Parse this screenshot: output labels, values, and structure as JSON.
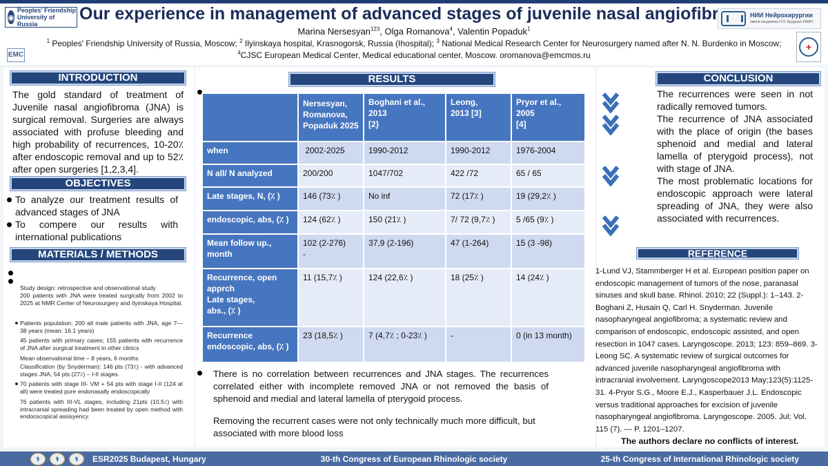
{
  "header": {
    "title": "Our experience in management of advanced stages of juvenile nasal angiofibromas",
    "authors": [
      {
        "name": "Marina Nersesyan",
        "sup": "123"
      },
      {
        "name": "Olga Romanova",
        "sup": "4"
      },
      {
        "name": "Valentin Popaduk",
        "sup": "1"
      }
    ],
    "affiliations": [
      {
        "sup": "1",
        "text": "Peoples' Friendship University of Russia, Moscow;"
      },
      {
        "sup": "2",
        "text": "Ilyinskaya hospital, Krasnogorsk, Russia (Ihospital);"
      },
      {
        "sup": "3",
        "text": "National Medical Research Center for Neurosurgery named after N. N. Burdenko in Moscow;"
      },
      {
        "sup": "4",
        "text": "CJSC European Medical Center, Medical educational center, Moscow. oromanova@emcmos.ru"
      }
    ],
    "logo_left": "Peoples' Friendship University of Russia",
    "logo_emc": "EMC",
    "logo_right": "НИИ Нейрохирургии",
    "logo_right_sub": "имени академика Н.Н. Бурденко РАМН"
  },
  "introduction": {
    "heading": "INTRODUCTION",
    "text": "The gold standard of treatment of Juvenile nasal angiofibroma (JNA) is surgical removal. Surgeries are always associated with profuse bleeding and high probability of recurrences, 10-20٪ after endoscopic removal and up to 52٪ after open surgeries [1,2,3,4]."
  },
  "objectives": {
    "heading": "OBJECTIVES",
    "items": [
      "To analyze our treatment results of advanced stages of JNA",
      "To compere our results with international publications"
    ]
  },
  "methods": {
    "heading": "MATERIALS / METHODS",
    "lines": [
      "Study design: retrospective and observational study",
      "200 patients with JNA were treated surgically from 2002 to 2025 at NMR Center of Neurosurgery and Ilyinskaya Hospital.",
      "Patients population: 200 all male patients with JNA, age 7—38 years (mean: 16.1 years)",
      "45 patients with primary cases; 155 patients with recurrence of JNA after surgical treatment in other clinics",
      "Mean observational time – 8 years, 6 months",
      "Classification (by Snyderman): 146 pts (73٪) - with advanced stages JNA, 54 pts (27٪) – I-II stages.",
      "70 patients with stage III- VM + 54 pts with stage I-II (124 at all) were treated pure endonasally endoscopically",
      "76 patients with III-VL stages, including 21pts (10,5٪) with intracranial spreading had been treated by open method with endocscopical assisyency."
    ]
  },
  "results": {
    "heading": "RESULTS",
    "table": {
      "columns": [
        "",
        "Nersesyan, Romanova, Popaduk 2025",
        "Boghani et al., 2013\n [2}",
        "Leong,\n2013 [3]",
        "Pryor et al., 2005\n [4]"
      ],
      "rows": [
        {
          "label": "when",
          "cells": [
            " 2002-2025",
            "1990-2012",
            "1990-2012",
            "1976-2004"
          ]
        },
        {
          "label": "N all/ N analyzed",
          "cells": [
            "200/200",
            "1047/702",
            "422 /72",
            "65 / 65"
          ]
        },
        {
          "label": "Late stages, N, (٪ )",
          "cells": [
            "146 (73٪ )",
            "No inf",
            "72  (17٪ )",
            "19 (29,2٪ )"
          ]
        },
        {
          "label": "endoscopic, abs, (٪ )",
          "cells": [
            "124  (62٪ )",
            "150 (21٪ )",
            "7/ 72 (9,7٪ )",
            "5 /65 (9٪ )"
          ]
        },
        {
          "label": "Mean follow up., month",
          "cells": [
            "102 (2-276)\n-",
            "37,9 (2-196)",
            "47  (1-264)",
            "15 (3 -98)"
          ]
        },
        {
          "label": "Recurrence, open apprch\nLate stages,\nabs., (٪ )",
          "cells": [
            "11 (15,7٪ )",
            "124 (22,6٪ )",
            "18 (25٪ )",
            "14 (24٪ )"
          ]
        },
        {
          "label": "Recurrence endoscopic, abs, (٪ )",
          "cells": [
            "23 (18,5٪ )",
            "7 (4,7٪ ; 0-23٪ )",
            "-",
            "0 (in  13 month)"
          ]
        }
      ]
    },
    "finding": "There is no correlation between recurrences and JNA stages. The recurrences correlated either with incomplete removed JNA or not removed the basis of sphenoid and medial and lateral lamella of pterygoid process.",
    "finding2": "Removing the recurrent cases were not only technically much more difficult, but associated with more blood loss"
  },
  "conclusion": {
    "heading": "CONCLUSION",
    "paragraphs": [
      "The recurrences were seen in not radically removed tumors.",
      "The recurrence of JNA associated with  the place of origin (the bases sphenoid and medial and lateral lamella of pterygoid process), not with stage of JNA.",
      "The most problematic locations for endoscopic approach were lateral spreading of JNA, they were also associated with recurrences."
    ]
  },
  "reference": {
    "heading": "REFERENCE",
    "text": "1-Lund VJ, Stammberger H et al. European position paper on endoscopic management of tumors of the nose, paranasal sinuses and skull base. Rhinol. 2010; 22 (Suppl.): 1–143. 2-Boghani Z, Husain Q, Carl H. Snyderman. Juvenile nasopharyngeal angiofibroma; a systematic review and comparison of endoscopic, endoscopic assisted, and open resection in 1047 cases. Laryngoscope. 2013; 123: 859–869. 3-Leong SC. A systematic review of surgical outcomes for advanced juvenile nasopharyngeal angiofibroma with intracranial involvement.  Laryngoscope2013 May;123(5):1125-31.  4-Pryor S.G., Moore E.J., Kasperbauer J.L. Endoscopic versus traditional approaches for excision of juvenile nasopharyngeal angiofibroma. Laryngoscope. 2005. Jul; Vol. 115 (7). — P. 1201–1207.",
    "disclaimer": "The authors declare no conflicts of interest."
  },
  "footer": {
    "left": "ESR2025 Budapest, Hungary",
    "center": "30-th Congress of European Rhinologic society",
    "right": "25-th Congress of International Rhinologic society"
  },
  "colors": {
    "accent": "#24467d",
    "table_header": "#4776c0",
    "table_row_light": "#e6ecf7",
    "table_row_dark": "#cfdaf0",
    "footer": "#4a6aa2"
  }
}
